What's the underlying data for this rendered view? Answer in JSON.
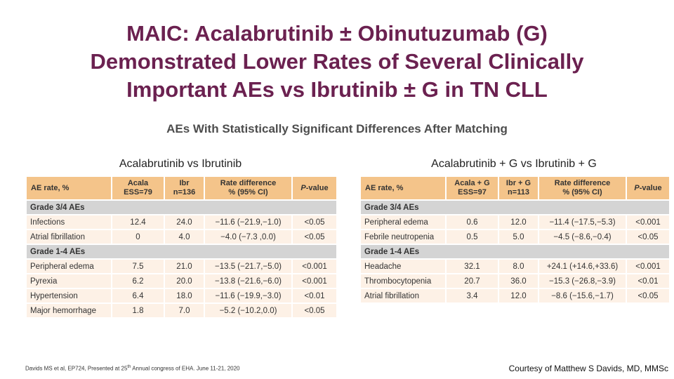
{
  "title": {
    "line1": "MAIC: Acalabrutinib ± Obinutuzumab (G)",
    "line2": "Demonstrated Lower Rates of Several Clinically",
    "line3": "Important AEs vs Ibrutinib ± G in TN CLL"
  },
  "subtitle": "AEs With Statistically Significant Differences After Matching",
  "left_table": {
    "heading": "Acalabrutinib vs Ibrutinib",
    "columns": {
      "c1": "AE rate, %",
      "c2a": "Acala",
      "c2b": "ESS=79",
      "c3a": "Ibr",
      "c3b": "n=136",
      "c4a": "Rate difference",
      "c4b": "% (95% CI)",
      "c5a": "P",
      "c5b": "-value"
    },
    "group1": "Grade 3/4 AEs",
    "rows1": [
      [
        "Infections",
        "12.4",
        "24.0",
        "−11.6 (−21.9,−1.0)",
        "<0.05"
      ],
      [
        "Atrial fibrillation",
        "0",
        "4.0",
        "−4.0 (−7.3 ,0.0)",
        "<0.05"
      ]
    ],
    "group2": "Grade 1-4 AEs",
    "rows2": [
      [
        "Peripheral edema",
        "7.5",
        "21.0",
        "−13.5 (−21.7,−5.0)",
        "<0.001"
      ],
      [
        "Pyrexia",
        "6.2",
        "20.0",
        "−13.8 (−21.6,−6.0)",
        "<0.001"
      ],
      [
        "Hypertension",
        "6.4",
        "18.0",
        "−11.6 (−19.9,−3.0)",
        "<0.01"
      ],
      [
        "Major hemorrhage",
        "1.8",
        "7.0",
        "−5.2 (−10.2,0.0)",
        "<0.05"
      ]
    ]
  },
  "right_table": {
    "heading": "Acalabrutinib + G vs Ibrutinib + G",
    "columns": {
      "c1": "AE rate, %",
      "c2a": "Acala + G",
      "c2b": "ESS=97",
      "c3a": "Ibr + G",
      "c3b": "n=113",
      "c4a": "Rate difference",
      "c4b": "% (95% CI)",
      "c5a": "P",
      "c5b": "-value"
    },
    "group1": "Grade 3/4 AEs",
    "rows1": [
      [
        "Peripheral edema",
        "0.6",
        "12.0",
        "−11.4 (−17.5,−5.3)",
        "<0.001"
      ],
      [
        "Febrile neutropenia",
        "0.5",
        "5.0",
        "−4.5 (−8.6,−0.4)",
        "<0.05"
      ]
    ],
    "group2": "Grade 1-4 AEs",
    "rows2": [
      [
        "Headache",
        "32.1",
        "8.0",
        "+24.1 (+14.6,+33.6)",
        "<0.001"
      ],
      [
        "Thrombocytopenia",
        "20.7",
        "36.0",
        "−15.3 (−26.8,−3.9)",
        "<0.01"
      ],
      [
        "Atrial fibrillation",
        "3.4",
        "12.0",
        "−8.6 (−15.6,−1.7)",
        "<0.05"
      ]
    ]
  },
  "footer": {
    "citation_a": "Davids MS et al, EP724, Presented at 25",
    "citation_sup": "th",
    "citation_b": " Annual congress of EHA. June 11-21, 2020",
    "courtesy": "Courtesy of Matthew S Davids, MD, MMSc"
  }
}
